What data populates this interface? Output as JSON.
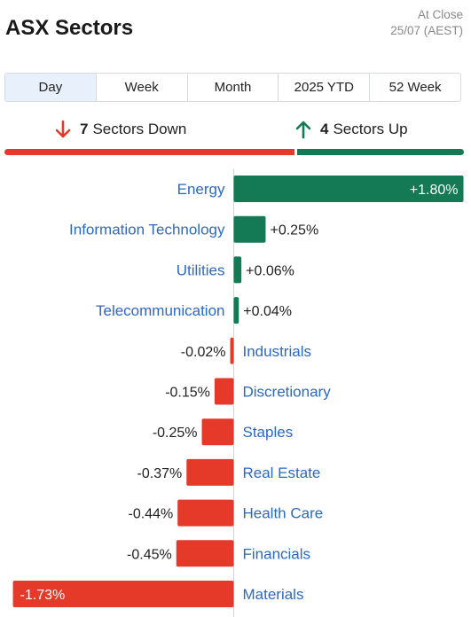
{
  "header": {
    "title": "ASX Sectors",
    "close_line1": "At Close",
    "close_line2": "25/07 (AEST)"
  },
  "tabs": [
    {
      "label": "Day",
      "active": true
    },
    {
      "label": "Week",
      "active": false
    },
    {
      "label": "Month",
      "active": false
    },
    {
      "label": "2025 YTD",
      "active": false
    },
    {
      "label": "52 Week",
      "active": false
    }
  ],
  "summary": {
    "down_count": "7",
    "down_label": "Sectors Down",
    "up_count": "4",
    "up_label": "Sectors Up",
    "down_color": "#e53a2a",
    "up_color": "#137a55"
  },
  "chart_data": {
    "type": "bar",
    "orientation": "horizontal",
    "title": "",
    "xlabel": "",
    "ylabel": "",
    "categories": [
      "Energy",
      "Information Technology",
      "Utilities",
      "Telecommunication",
      "Industrials",
      "Discretionary",
      "Staples",
      "Real Estate",
      "Health Care",
      "Financials",
      "Materials"
    ],
    "values": [
      1.8,
      0.25,
      0.06,
      0.04,
      -0.02,
      -0.15,
      -0.25,
      -0.37,
      -0.44,
      -0.45,
      -1.73
    ],
    "labels": [
      "+1.80%",
      "+0.25%",
      "+0.06%",
      "+0.04%",
      "-0.02%",
      "-0.15%",
      "-0.25%",
      "-0.37%",
      "-0.44%",
      "-0.45%",
      "-1.73%"
    ],
    "positive_color": "#137a55",
    "negative_color": "#e53a2a"
  }
}
